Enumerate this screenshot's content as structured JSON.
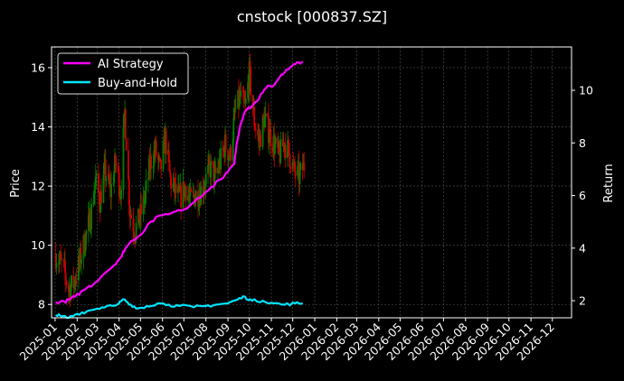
{
  "chart_data": {
    "type": "line",
    "title": "cnstock [000837.SZ]",
    "xlabel": "",
    "ylabel": "Price",
    "y2label": "Return",
    "grid": true,
    "legend_position": "upper-left",
    "colors": {
      "background": "#000000",
      "frame": "#ffffff",
      "grid": "#555555",
      "candle_up": "#008000",
      "candle_down": "#cc0000",
      "ai_strategy": "#ff00ff",
      "buy_and_hold": "#00e5ff"
    },
    "x_range": [
      "2024-12-27",
      "2026-12-28"
    ],
    "x_ticks": [
      "2025-01",
      "2025-02",
      "2025-03",
      "2025-04",
      "2025-05",
      "2025-06",
      "2025-07",
      "2025-08",
      "2025-09",
      "2025-10",
      "2025-11",
      "2025-12",
      "2026-01",
      "2026-02",
      "2026-03",
      "2026-04",
      "2026-05",
      "2026-06",
      "2026-07",
      "2026-08",
      "2026-09",
      "2026-10",
      "2026-11",
      "2026-12"
    ],
    "y_left": {
      "range": [
        7.55,
        16.7
      ],
      "ticks": [
        8,
        10,
        12,
        14,
        16
      ]
    },
    "y_right": {
      "range": [
        1.35,
        11.65
      ],
      "ticks": [
        2,
        4,
        6,
        8,
        10
      ]
    },
    "price_series_name": "000837.SZ",
    "price_path": [
      [
        "2025-01-02",
        9.7
      ],
      [
        "2025-01-13",
        9.2
      ],
      [
        "2025-01-20",
        8.5
      ],
      [
        "2025-01-27",
        8.7
      ],
      [
        "2025-02-05",
        9.5
      ],
      [
        "2025-02-12",
        10.2
      ],
      [
        "2025-02-20",
        11.0
      ],
      [
        "2025-02-27",
        12.2
      ],
      [
        "2025-03-05",
        11.5
      ],
      [
        "2025-03-12",
        12.5
      ],
      [
        "2025-03-20",
        11.8
      ],
      [
        "2025-03-27",
        12.8
      ],
      [
        "2025-04-03",
        11.8
      ],
      [
        "2025-04-09",
        14.5
      ],
      [
        "2025-04-16",
        11.2
      ],
      [
        "2025-04-23",
        10.5
      ],
      [
        "2025-04-30",
        10.9
      ],
      [
        "2025-05-08",
        11.7
      ],
      [
        "2025-05-15",
        12.8
      ],
      [
        "2025-05-22",
        13.2
      ],
      [
        "2025-05-29",
        12.5
      ],
      [
        "2025-06-05",
        13.6
      ],
      [
        "2025-06-12",
        12.2
      ],
      [
        "2025-06-19",
        11.8
      ],
      [
        "2025-06-26",
        11.6
      ],
      [
        "2025-07-03",
        12.0
      ],
      [
        "2025-07-10",
        11.5
      ],
      [
        "2025-07-17",
        11.7
      ],
      [
        "2025-07-24",
        11.8
      ],
      [
        "2025-07-31",
        12.2
      ],
      [
        "2025-08-07",
        12.6
      ],
      [
        "2025-08-14",
        12.3
      ],
      [
        "2025-08-21",
        12.8
      ],
      [
        "2025-08-28",
        13.4
      ],
      [
        "2025-09-04",
        13.0
      ],
      [
        "2025-09-11",
        14.5
      ],
      [
        "2025-09-18",
        15.0
      ],
      [
        "2025-09-25",
        14.6
      ],
      [
        "2025-10-01",
        15.8
      ],
      [
        "2025-10-08",
        14.2
      ],
      [
        "2025-10-15",
        13.5
      ],
      [
        "2025-10-22",
        14.3
      ],
      [
        "2025-10-29",
        13.8
      ],
      [
        "2025-11-05",
        13.4
      ],
      [
        "2025-11-12",
        13.0
      ],
      [
        "2025-11-19",
        13.5
      ],
      [
        "2025-11-26",
        13.1
      ],
      [
        "2025-12-03",
        12.5
      ],
      [
        "2025-12-10",
        12.3
      ],
      [
        "2025-12-17",
        12.7
      ]
    ],
    "series": [
      {
        "name": "AI Strategy",
        "axis": "right",
        "points": [
          [
            "2025-01-02",
            1.95
          ],
          [
            "2025-01-15",
            1.95
          ],
          [
            "2025-01-22",
            2.05
          ],
          [
            "2025-01-29",
            2.15
          ],
          [
            "2025-02-10",
            2.4
          ],
          [
            "2025-02-25",
            2.65
          ],
          [
            "2025-03-10",
            3.0
          ],
          [
            "2025-03-25",
            3.35
          ],
          [
            "2025-04-05",
            3.7
          ],
          [
            "2025-04-10",
            4.0
          ],
          [
            "2025-04-20",
            4.3
          ],
          [
            "2025-05-01",
            4.5
          ],
          [
            "2025-05-15",
            5.0
          ],
          [
            "2025-06-01",
            5.25
          ],
          [
            "2025-06-20",
            5.4
          ],
          [
            "2025-07-05",
            5.5
          ],
          [
            "2025-07-20",
            5.9
          ],
          [
            "2025-08-05",
            6.2
          ],
          [
            "2025-08-20",
            6.6
          ],
          [
            "2025-09-01",
            6.9
          ],
          [
            "2025-09-10",
            7.2
          ],
          [
            "2025-09-15",
            8.2
          ],
          [
            "2025-09-20",
            8.8
          ],
          [
            "2025-09-25",
            9.2
          ],
          [
            "2025-10-05",
            9.4
          ],
          [
            "2025-10-15",
            9.7
          ],
          [
            "2025-10-25",
            10.1
          ],
          [
            "2025-11-05",
            10.2
          ],
          [
            "2025-11-15",
            10.6
          ],
          [
            "2025-11-25",
            10.8
          ],
          [
            "2025-12-05",
            11.0
          ],
          [
            "2025-12-15",
            11.1
          ]
        ]
      },
      {
        "name": "Buy-and-Hold",
        "axis": "right",
        "points": [
          [
            "2025-01-02",
            1.45
          ],
          [
            "2025-01-10",
            1.4
          ],
          [
            "2025-01-20",
            1.35
          ],
          [
            "2025-02-01",
            1.5
          ],
          [
            "2025-02-15",
            1.6
          ],
          [
            "2025-03-01",
            1.7
          ],
          [
            "2025-03-15",
            1.8
          ],
          [
            "2025-04-01",
            1.9
          ],
          [
            "2025-04-08",
            2.05
          ],
          [
            "2025-04-15",
            1.85
          ],
          [
            "2025-04-25",
            1.7
          ],
          [
            "2025-05-10",
            1.8
          ],
          [
            "2025-05-25",
            1.9
          ],
          [
            "2025-06-10",
            1.85
          ],
          [
            "2025-06-25",
            1.8
          ],
          [
            "2025-07-15",
            1.75
          ],
          [
            "2025-08-01",
            1.8
          ],
          [
            "2025-08-15",
            1.85
          ],
          [
            "2025-09-01",
            1.9
          ],
          [
            "2025-09-15",
            2.05
          ],
          [
            "2025-09-25",
            2.15
          ],
          [
            "2025-10-05",
            2.0
          ],
          [
            "2025-10-20",
            2.0
          ],
          [
            "2025-11-05",
            1.9
          ],
          [
            "2025-11-20",
            1.85
          ],
          [
            "2025-12-05",
            1.9
          ],
          [
            "2025-12-15",
            1.9
          ]
        ]
      }
    ]
  }
}
